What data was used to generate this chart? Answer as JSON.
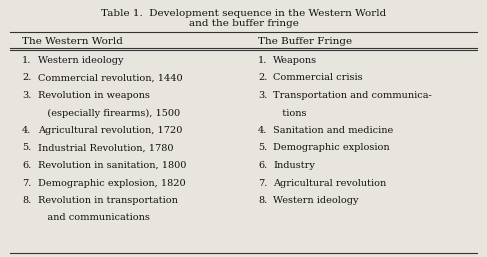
{
  "title_line1": "Table 1.  Development sequence in the Western World",
  "title_line2": "and the buffer fringe",
  "col1_header": "The Western World",
  "col2_header": "The Buffer Fringe",
  "col1_items": [
    [
      "1.",
      "Western ideology"
    ],
    [
      "2.",
      "Commercial revolution, 1440"
    ],
    [
      "3.",
      "Revolution in weapons"
    ],
    [
      "",
      "   (especially firearms), 1500"
    ],
    [
      "4.",
      "Agricultural revolution, 1720"
    ],
    [
      "5.",
      "Industrial Revolution, 1780"
    ],
    [
      "6.",
      "Revolution in sanitation, 1800"
    ],
    [
      "7.",
      "Demographic explosion, 1820"
    ],
    [
      "8.",
      "Revolution in transportation"
    ],
    [
      "",
      "   and communications"
    ]
  ],
  "col2_items": [
    [
      "1.",
      "Weapons"
    ],
    [
      "2.",
      "Commercial crisis"
    ],
    [
      "3.",
      "Transportation and communica-"
    ],
    [
      "",
      "   tions"
    ],
    [
      "4.",
      "Sanitation and medicine"
    ],
    [
      "5.",
      "Demographic explosion"
    ],
    [
      "6.",
      "Industry"
    ],
    [
      "7.",
      "Agricultural revolution"
    ],
    [
      "8.",
      "Western ideology"
    ],
    [
      "",
      ""
    ]
  ],
  "bg_color": "#e8e5df",
  "text_color": "#111111",
  "title_fontsize": 7.5,
  "header_fontsize": 7.5,
  "body_fontsize": 7.0,
  "line_color": "#333333"
}
